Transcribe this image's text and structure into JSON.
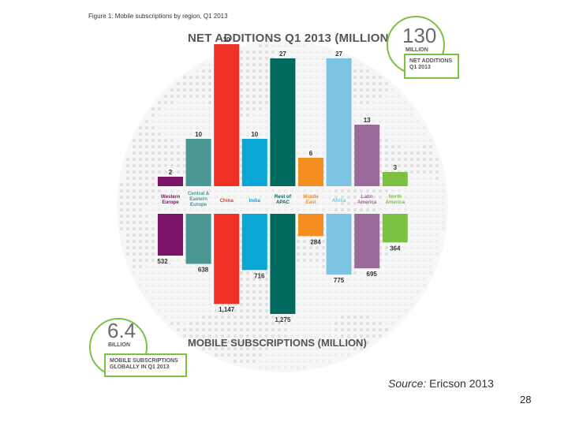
{
  "figure_caption": "Figure 1: Mobile subscriptions by region, Q1 2013",
  "badge_top": {
    "value": "130",
    "unit": "MILLION",
    "caption_line1": "NET ADDITIONS",
    "caption_line2": "Q1 2013"
  },
  "badge_bottom": {
    "value": "6.4",
    "unit": "BILLION",
    "caption_line1": "MOBILE SUBSCRIPTIONS",
    "caption_line2": "GLOBALLY IN Q1 2013"
  },
  "source": {
    "prefix": "Source:",
    "text": " Ericson 2013"
  },
  "page_number": "28",
  "colors": {
    "Western Europe": "#7b1466",
    "Central & Eastern Europe": "#4a9692",
    "China": "#ee3124",
    "India": "#0aa6d6",
    "Rest of APAC": "#006a5e",
    "Middle East": "#f58e21",
    "Africa": "#7cc4e4",
    "Latin America": "#9b6a9b",
    "North America": "#7cc142",
    "accent": "#7cc142"
  },
  "chart_data": {
    "type": "bar",
    "categories": [
      "Western Europe",
      "Central & Eastern Europe",
      "China",
      "India",
      "Rest of APAC",
      "Middle East",
      "Africa",
      "Latin America",
      "North America"
    ],
    "category_labels": [
      [
        "Western",
        "Europe"
      ],
      [
        "Central &",
        "Eastern",
        "Europe"
      ],
      [
        "China"
      ],
      [
        "India"
      ],
      [
        "Rest of",
        "APAC"
      ],
      [
        "Middle",
        "East"
      ],
      [
        "Africa"
      ],
      [
        "Latin",
        "America"
      ],
      [
        "North",
        "America"
      ]
    ],
    "series": [
      {
        "name": "NET ADDITIONS Q1 2013 (MILLION)",
        "values": [
          2,
          10,
          30,
          10,
          27,
          6,
          27,
          13,
          3
        ],
        "labels": [
          "2",
          "10",
          "30",
          "10",
          "27",
          "6",
          "27",
          "13",
          "3"
        ]
      },
      {
        "name": "MOBILE SUBSCRIPTIONS (MILLION)",
        "values": [
          532,
          638,
          1147,
          716,
          1275,
          284,
          775,
          695,
          364
        ],
        "labels": [
          "532",
          "638",
          "1,147",
          "716",
          "1,275",
          "284",
          "775",
          "695",
          "364"
        ]
      }
    ],
    "title_top": "NET ADDITIONS Q1 2013 (MILLION)",
    "title_bottom": "MOBILE SUBSCRIPTIONS (MILLION)"
  }
}
